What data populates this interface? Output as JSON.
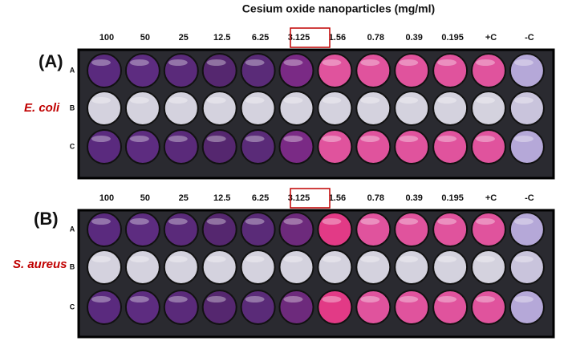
{
  "title": "Cesium oxide nanoparticles (mg/ml)",
  "panels": [
    {
      "label": "(A)",
      "organism": "E. coli",
      "columns": [
        "100",
        "50",
        "25",
        "12.5",
        "6.25",
        "3.125",
        "1.56",
        "0.78",
        "0.39",
        "0.195",
        "+C",
        "-C"
      ],
      "rows": [
        "A",
        "B",
        "C"
      ]
    },
    {
      "label": "(B)",
      "organism": "S. aureus",
      "columns": [
        "100",
        "50",
        "25",
        "12.5",
        "6.25",
        "3.125",
        "1.56",
        "0.78",
        "0.39",
        "0.195",
        "+C",
        "-C"
      ],
      "rows": [
        "A",
        "B",
        "C"
      ]
    }
  ]
}
